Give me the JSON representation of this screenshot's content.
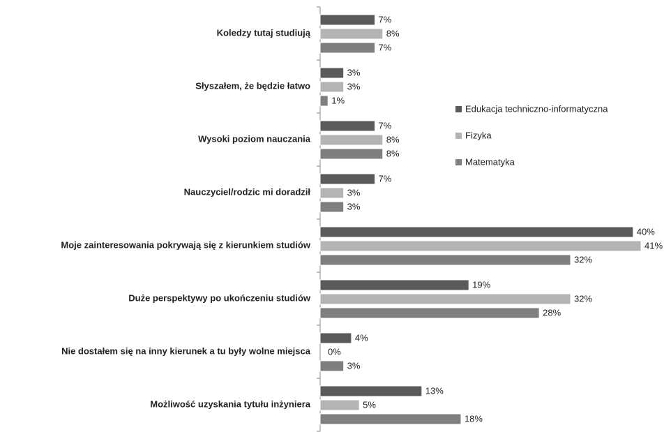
{
  "chart_data": {
    "type": "bar",
    "orientation": "horizontal",
    "categories": [
      "Koledzy tutaj studiują",
      "Słyszałem, że będzie łatwo",
      "Wysoki poziom nauczania",
      "Nauczyciel/rodzic mi doradził",
      "Moje zainteresowania pokrywają się z kierunkiem studiów",
      "Duże perspektywy po ukończeniu studiów",
      "Nie dostałem się na inny kierunek a tu były wolne miejsca",
      "Możliwość uzyskania tytułu inżyniera"
    ],
    "series": [
      {
        "name": "Edukacja techniczno-informatyczna",
        "color": "#5a5a5a",
        "values": [
          7,
          3,
          7,
          7,
          40,
          19,
          4,
          13
        ],
        "value_labels": [
          "7%",
          "3%",
          "7%",
          "7%",
          "40%",
          "19%",
          "4%",
          "13%"
        ]
      },
      {
        "name": "Fizyka",
        "color": "#b4b4b4",
        "values": [
          8,
          3,
          8,
          3,
          41,
          32,
          0,
          5
        ],
        "value_labels": [
          "8%",
          "3%",
          "8%",
          "3%",
          "41%",
          "32%",
          "0%",
          "5%"
        ]
      },
      {
        "name": "Matematyka",
        "color": "#7f7f7f",
        "values": [
          7,
          1,
          8,
          3,
          32,
          28,
          3,
          18
        ],
        "value_labels": [
          "7%",
          "1%",
          "8%",
          "3%",
          "32%",
          "28%",
          "3%",
          "18%"
        ]
      }
    ],
    "legend": "right"
  }
}
